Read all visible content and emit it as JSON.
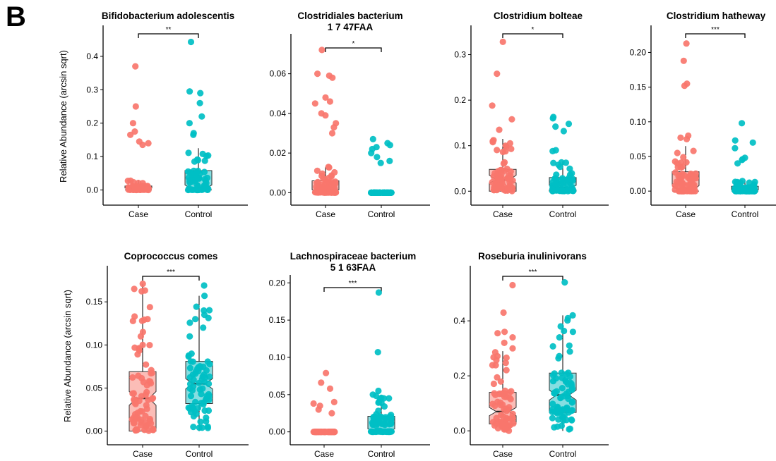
{
  "panel_letter": "B",
  "colors": {
    "case": "#F8766D",
    "control": "#00BFC4",
    "case_box": "#FBB9B3",
    "control_box": "#7FDCDF"
  },
  "chart_data": [
    {
      "type": "box_jitter",
      "title": [
        "Bifidobacterium adolescentis"
      ],
      "ylabel": "Relative Abundance (arcsin sqrt)",
      "categories": [
        "Case",
        "Control"
      ],
      "ylim": [
        -0.02,
        0.48
      ],
      "yticks": [
        0.0,
        0.1,
        0.2,
        0.3,
        0.4
      ],
      "significance": "**",
      "boxes": [
        {
          "group": "Case",
          "q1": 0.0,
          "median": 0.003,
          "q3": 0.012,
          "whisker_low": 0.0,
          "whisker_high": 0.03,
          "notch": [
            0.0,
            0.006
          ]
        },
        {
          "group": "Control",
          "q1": 0.0,
          "median": 0.003,
          "q3": 0.058,
          "whisker_low": 0.0,
          "whisker_high": 0.125,
          "notch": [
            0.0,
            0.015
          ]
        }
      ],
      "notable_points": {
        "Case": [
          0.37,
          0.25,
          0.2,
          0.175,
          0.165,
          0.145,
          0.14,
          0.135
        ],
        "Control": [
          0.443,
          0.295,
          0.29,
          0.26,
          0.22,
          0.2,
          0.17,
          0.165
        ]
      }
    },
    {
      "type": "box_jitter",
      "title": [
        "Clostridiales bacterium",
        "1 7 47FAA"
      ],
      "ylabel": "",
      "categories": [
        "Case",
        "Control"
      ],
      "ylim": [
        -0.002,
        0.078
      ],
      "yticks": [
        0.0,
        0.02,
        0.04,
        0.06
      ],
      "significance": "*",
      "boxes": [
        {
          "group": "Case",
          "q1": 0.0,
          "median": 0.0005,
          "q3": 0.006,
          "whisker_low": 0.0,
          "whisker_high": 0.013,
          "notch": [
            0.0,
            0.0015
          ]
        },
        {
          "group": "Control",
          "q1": 0.0,
          "median": 0.0,
          "q3": 0.0,
          "whisker_low": 0.0,
          "whisker_high": 0.0,
          "notch": [
            0.0,
            0.0
          ]
        }
      ],
      "notable_points": {
        "Case": [
          0.072,
          0.06,
          0.059,
          0.058,
          0.048,
          0.046,
          0.045,
          0.04,
          0.039,
          0.035,
          0.033,
          0.03
        ],
        "Control": [
          0.027,
          0.025,
          0.024,
          0.023,
          0.022,
          0.02,
          0.018,
          0.016,
          0.015
        ]
      }
    },
    {
      "type": "box_jitter",
      "title": [
        "Clostridium bolteae"
      ],
      "ylabel": "",
      "categories": [
        "Case",
        "Control"
      ],
      "ylim": [
        -0.012,
        0.355
      ],
      "yticks": [
        0.0,
        0.1,
        0.2,
        0.3
      ],
      "significance": "*",
      "boxes": [
        {
          "group": "Case",
          "q1": 0.0,
          "median": 0.025,
          "q3": 0.048,
          "whisker_low": 0.0,
          "whisker_high": 0.115,
          "notch": [
            0.018,
            0.035
          ]
        },
        {
          "group": "Control",
          "q1": 0.0,
          "median": 0.008,
          "q3": 0.03,
          "whisker_low": 0.0,
          "whisker_high": 0.065,
          "notch": [
            0.003,
            0.013
          ]
        }
      ],
      "notable_points": {
        "Case": [
          0.328,
          0.258,
          0.188,
          0.158,
          0.135,
          0.11,
          0.105,
          0.1
        ],
        "Control": [
          0.163,
          0.16,
          0.148,
          0.142,
          0.132,
          0.09,
          0.088
        ]
      }
    },
    {
      "type": "box_jitter",
      "title": [
        "Clostridium hatheway"
      ],
      "ylabel": "",
      "categories": [
        "Case",
        "Control"
      ],
      "ylim": [
        -0.008,
        0.233
      ],
      "yticks": [
        0.0,
        0.05,
        0.1,
        0.15,
        0.2
      ],
      "significance": "***",
      "boxes": [
        {
          "group": "Case",
          "q1": 0.0,
          "median": 0.0,
          "q3": 0.028,
          "whisker_low": 0.0,
          "whisker_high": 0.065,
          "notch": [
            0.0,
            0.008
          ]
        },
        {
          "group": "Control",
          "q1": 0.0,
          "median": 0.0,
          "q3": 0.007,
          "whisker_low": 0.0,
          "whisker_high": 0.015,
          "notch": [
            0.0,
            0.002
          ]
        }
      ],
      "notable_points": {
        "Case": [
          0.213,
          0.188,
          0.155,
          0.152,
          0.08,
          0.077,
          0.075
        ],
        "Control": [
          0.098,
          0.073,
          0.07,
          0.062,
          0.048,
          0.046,
          0.045,
          0.04
        ]
      }
    },
    {
      "type": "box_jitter",
      "title": [
        "Coprococcus comes"
      ],
      "ylabel": "Relative Abundance (arcsin sqrt)",
      "categories": [
        "Case",
        "Control"
      ],
      "ylim": [
        -0.006,
        0.187
      ],
      "yticks": [
        0.0,
        0.05,
        0.1,
        0.15
      ],
      "significance": "***",
      "boxes": [
        {
          "group": "Case",
          "q1": 0.0,
          "median": 0.038,
          "q3": 0.069,
          "whisker_low": 0.0,
          "whisker_high": 0.171,
          "notch": [
            0.03,
            0.046
          ]
        },
        {
          "group": "Control",
          "q1": 0.032,
          "median": 0.055,
          "q3": 0.081,
          "whisker_low": 0.0,
          "whisker_high": 0.157,
          "notch": [
            0.049,
            0.061
          ]
        }
      ],
      "notable_points": {
        "Case": [
          0.171,
          0.165,
          0.133,
          0.13,
          0.128,
          0.115,
          0.11,
          0.1,
          0.095
        ],
        "Control": [
          0.169,
          0.157,
          0.14,
          0.135,
          0.13,
          0.12,
          0.11
        ]
      }
    },
    {
      "type": "box_jitter",
      "title": [
        "Lachnospiraceae bacterium",
        "5 1 63FAA"
      ],
      "ylabel": "",
      "categories": [
        "Case",
        "Control"
      ],
      "ylim": [
        -0.006,
        0.205
      ],
      "yticks": [
        0.0,
        0.05,
        0.1,
        0.15,
        0.2
      ],
      "significance": "***",
      "boxes": [
        {
          "group": "Case",
          "q1": 0.0,
          "median": 0.0,
          "q3": 0.0,
          "whisker_low": 0.0,
          "whisker_high": 0.0,
          "notch": [
            0.0,
            0.0
          ]
        },
        {
          "group": "Control",
          "q1": 0.0,
          "median": 0.001,
          "q3": 0.021,
          "whisker_low": 0.0,
          "whisker_high": 0.049,
          "notch": [
            0.0,
            0.004
          ]
        }
      ],
      "notable_points": {
        "Case": [
          0.079,
          0.066,
          0.058,
          0.04,
          0.038,
          0.035,
          0.03,
          0.025
        ],
        "Control": [
          0.187,
          0.107,
          0.055,
          0.05,
          0.045,
          0.04
        ]
      }
    },
    {
      "type": "box_jitter",
      "title": [
        "Roseburia inulinivorans"
      ],
      "ylabel": "",
      "categories": [
        "Case",
        "Control"
      ],
      "ylim": [
        -0.02,
        0.585
      ],
      "yticks": [
        0.0,
        0.2,
        0.4
      ],
      "significance": "***",
      "boxes": [
        {
          "group": "Case",
          "q1": 0.025,
          "median": 0.07,
          "q3": 0.14,
          "whisker_low": 0.0,
          "whisker_high": 0.29,
          "notch": [
            0.055,
            0.085
          ]
        },
        {
          "group": "Control",
          "q1": 0.067,
          "median": 0.13,
          "q3": 0.21,
          "whisker_low": 0.0,
          "whisker_high": 0.42,
          "notch": [
            0.112,
            0.148
          ]
        }
      ],
      "notable_points": {
        "Case": [
          0.53,
          0.43,
          0.36,
          0.355,
          0.34,
          0.32,
          0.3
        ],
        "Control": [
          0.54,
          0.42,
          0.41,
          0.38,
          0.36,
          0.34,
          0.31
        ]
      }
    }
  ]
}
